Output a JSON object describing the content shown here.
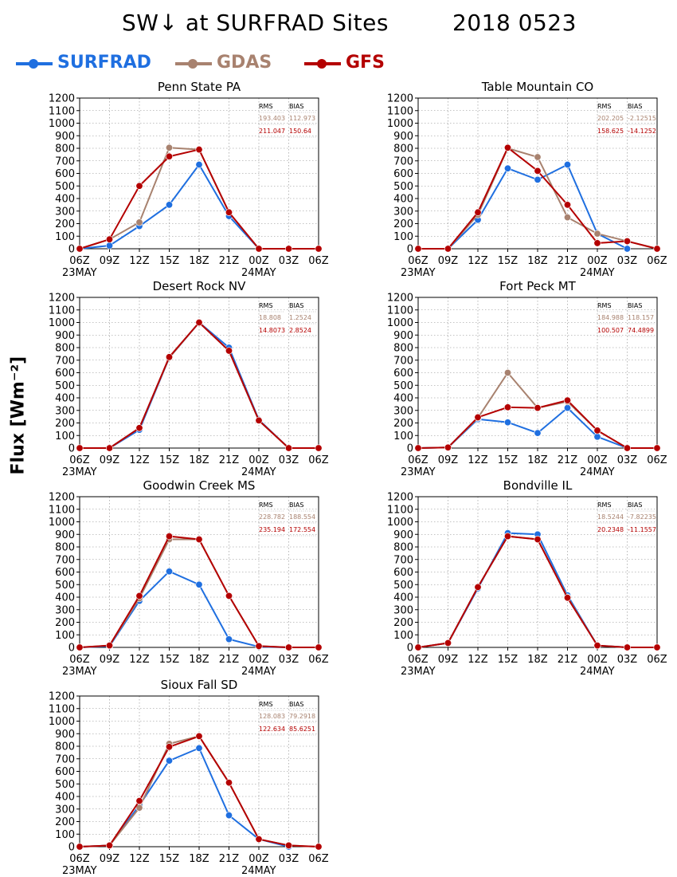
{
  "title": {
    "main": "SW↓ at SURFRAD Sites",
    "date": "2018 0523"
  },
  "ylabel": "Flux [Wm⁻²]",
  "colors": {
    "SURFRAD": "#1f6fe0",
    "GDAS": "#a8826f",
    "GFS": "#b40000",
    "grid": "#888888"
  },
  "legend": [
    {
      "name": "SURFRAD",
      "color": "#1f6fe0"
    },
    {
      "name": "GDAS",
      "color": "#a8826f"
    },
    {
      "name": "GFS",
      "color": "#b40000"
    }
  ],
  "chart_data": [
    {
      "type": "line",
      "title": "Penn State PA",
      "x": [
        "06Z",
        "09Z",
        "12Z",
        "15Z",
        "18Z",
        "21Z",
        "00Z",
        "03Z",
        "06Z"
      ],
      "date_labels": [
        "23MAY",
        "",
        "",
        "",
        "",
        "",
        "24MAY",
        "",
        ""
      ],
      "ylim": [
        0,
        1200
      ],
      "yticks": [
        0,
        100,
        200,
        300,
        400,
        500,
        600,
        700,
        800,
        900,
        1000,
        1100,
        1200
      ],
      "grid": true,
      "series": [
        {
          "name": "SURFRAD",
          "values": [
            0,
            25,
            180,
            350,
            670,
            260,
            0,
            null,
            null
          ]
        },
        {
          "name": "GDAS",
          "values": [
            0,
            75,
            210,
            805,
            790,
            290,
            0,
            0,
            0
          ]
        },
        {
          "name": "GFS",
          "values": [
            0,
            75,
            500,
            735,
            790,
            290,
            0,
            0,
            0
          ]
        }
      ],
      "stats": {
        "headers": [
          "RMS",
          "BIAS"
        ],
        "GDAS": [
          "193.403",
          "112.973"
        ],
        "GFS": [
          "211.047",
          "150.64"
        ]
      }
    },
    {
      "type": "line",
      "title": "Table Mountain CO",
      "x": [
        "06Z",
        "09Z",
        "12Z",
        "15Z",
        "18Z",
        "21Z",
        "00Z",
        "03Z",
        "06Z"
      ],
      "date_labels": [
        "23MAY",
        "",
        "",
        "",
        "",
        "",
        "24MAY",
        "",
        ""
      ],
      "ylim": [
        0,
        1200
      ],
      "yticks": [
        0,
        100,
        200,
        300,
        400,
        500,
        600,
        700,
        800,
        900,
        1000,
        1100,
        1200
      ],
      "grid": true,
      "series": [
        {
          "name": "SURFRAD",
          "values": [
            0,
            0,
            230,
            640,
            550,
            670,
            120,
            0,
            null
          ]
        },
        {
          "name": "GDAS",
          "values": [
            0,
            0,
            270,
            800,
            730,
            250,
            120,
            60,
            0
          ]
        },
        {
          "name": "GFS",
          "values": [
            0,
            0,
            290,
            805,
            620,
            350,
            45,
            60,
            0
          ]
        }
      ],
      "stats": {
        "headers": [
          "RMS",
          "BIAS"
        ],
        "GDAS": [
          "202.205",
          "-2.12515"
        ],
        "GFS": [
          "158.625",
          "-14.1252"
        ]
      }
    },
    {
      "type": "line",
      "title": "Desert Rock NV",
      "x": [
        "06Z",
        "09Z",
        "12Z",
        "15Z",
        "18Z",
        "21Z",
        "00Z",
        "03Z",
        "06Z"
      ],
      "date_labels": [
        "23MAY",
        "",
        "",
        "",
        "",
        "",
        "24MAY",
        "",
        ""
      ],
      "ylim": [
        0,
        1200
      ],
      "yticks": [
        0,
        100,
        200,
        300,
        400,
        500,
        600,
        700,
        800,
        900,
        1000,
        1100,
        1200
      ],
      "grid": true,
      "series": [
        {
          "name": "SURFRAD",
          "values": [
            0,
            0,
            145,
            720,
            1000,
            800,
            225,
            0,
            null
          ]
        },
        {
          "name": "GDAS",
          "values": [
            0,
            0,
            160,
            720,
            1000,
            775,
            220,
            0,
            0
          ]
        },
        {
          "name": "GFS",
          "values": [
            0,
            0,
            160,
            725,
            1000,
            775,
            220,
            0,
            0
          ]
        }
      ],
      "stats": {
        "headers": [
          "RMS",
          "BIAS"
        ],
        "GDAS": [
          "18.808",
          "1.2524"
        ],
        "GFS": [
          "14.8073",
          "2.8524"
        ]
      }
    },
    {
      "type": "line",
      "title": "Fort Peck MT",
      "x": [
        "06Z",
        "09Z",
        "12Z",
        "15Z",
        "18Z",
        "21Z",
        "00Z",
        "03Z",
        "06Z"
      ],
      "date_labels": [
        "23MAY",
        "",
        "",
        "",
        "",
        "",
        "24MAY",
        "",
        ""
      ],
      "ylim": [
        0,
        1200
      ],
      "yticks": [
        0,
        100,
        200,
        300,
        400,
        500,
        600,
        700,
        800,
        900,
        1000,
        1100,
        1200
      ],
      "grid": true,
      "series": [
        {
          "name": "SURFRAD",
          "values": [
            0,
            5,
            230,
            205,
            120,
            320,
            90,
            0,
            null
          ]
        },
        {
          "name": "GDAS",
          "values": [
            0,
            5,
            240,
            600,
            320,
            370,
            140,
            0,
            0
          ]
        },
        {
          "name": "GFS",
          "values": [
            0,
            5,
            245,
            325,
            320,
            380,
            140,
            0,
            0
          ]
        }
      ],
      "stats": {
        "headers": [
          "RMS",
          "BIAS"
        ],
        "GDAS": [
          "184.988",
          "118.157"
        ],
        "GFS": [
          "100.507",
          "74.4899"
        ]
      }
    },
    {
      "type": "line",
      "title": "Goodwin Creek MS",
      "x": [
        "06Z",
        "09Z",
        "12Z",
        "15Z",
        "18Z",
        "21Z",
        "00Z",
        "03Z",
        "06Z"
      ],
      "date_labels": [
        "23MAY",
        "",
        "",
        "",
        "",
        "",
        "24MAY",
        "",
        ""
      ],
      "ylim": [
        0,
        1200
      ],
      "yticks": [
        0,
        100,
        200,
        300,
        400,
        500,
        600,
        700,
        800,
        900,
        1000,
        1100,
        1200
      ],
      "grid": true,
      "series": [
        {
          "name": "SURFRAD",
          "values": [
            0,
            10,
            370,
            605,
            500,
            65,
            5,
            0,
            null
          ]
        },
        {
          "name": "GDAS",
          "values": [
            0,
            15,
            390,
            860,
            860,
            410,
            10,
            0,
            0
          ]
        },
        {
          "name": "GFS",
          "values": [
            0,
            15,
            410,
            885,
            860,
            410,
            10,
            0,
            0
          ]
        }
      ],
      "stats": {
        "headers": [
          "RMS",
          "BIAS"
        ],
        "GDAS": [
          "228.782",
          "188.554"
        ],
        "GFS": [
          "235.194",
          "172.554"
        ]
      }
    },
    {
      "type": "line",
      "title": "Bondville IL",
      "x": [
        "06Z",
        "09Z",
        "12Z",
        "15Z",
        "18Z",
        "21Z",
        "00Z",
        "03Z",
        "06Z"
      ],
      "date_labels": [
        "23MAY",
        "",
        "",
        "",
        "",
        "",
        "24MAY",
        "",
        ""
      ],
      "ylim": [
        0,
        1200
      ],
      "yticks": [
        0,
        100,
        200,
        300,
        400,
        500,
        600,
        700,
        800,
        900,
        1000,
        1100,
        1200
      ],
      "grid": true,
      "series": [
        {
          "name": "SURFRAD",
          "values": [
            0,
            35,
            470,
            910,
            900,
            415,
            15,
            0,
            null
          ]
        },
        {
          "name": "GDAS",
          "values": [
            0,
            35,
            480,
            885,
            860,
            400,
            15,
            0,
            0
          ]
        },
        {
          "name": "GFS",
          "values": [
            0,
            35,
            480,
            885,
            860,
            395,
            15,
            0,
            0
          ]
        }
      ],
      "stats": {
        "headers": [
          "RMS",
          "BIAS"
        ],
        "GDAS": [
          "18.5244",
          "-7.82235"
        ],
        "GFS": [
          "20.2348",
          "-11.1557"
        ]
      }
    },
    {
      "type": "line",
      "title": "Sioux Fall SD",
      "x": [
        "06Z",
        "09Z",
        "12Z",
        "15Z",
        "18Z",
        "21Z",
        "00Z",
        "03Z",
        "06Z"
      ],
      "date_labels": [
        "23MAY",
        "",
        "",
        "",
        "",
        "",
        "24MAY",
        "",
        ""
      ],
      "ylim": [
        0,
        1200
      ],
      "yticks": [
        0,
        100,
        200,
        300,
        400,
        500,
        600,
        700,
        800,
        900,
        1000,
        1100,
        1200
      ],
      "grid": true,
      "series": [
        {
          "name": "SURFRAD",
          "values": [
            0,
            10,
            330,
            685,
            785,
            250,
            60,
            0,
            null
          ]
        },
        {
          "name": "GDAS",
          "values": [
            0,
            10,
            310,
            820,
            880,
            510,
            60,
            10,
            0
          ]
        },
        {
          "name": "GFS",
          "values": [
            0,
            10,
            365,
            795,
            880,
            510,
            60,
            10,
            0
          ]
        }
      ],
      "stats": {
        "headers": [
          "RMS",
          "BIAS"
        ],
        "GDAS": [
          "128.083",
          "79.2918"
        ],
        "GFS": [
          "122.634",
          "85.6251"
        ]
      }
    }
  ]
}
